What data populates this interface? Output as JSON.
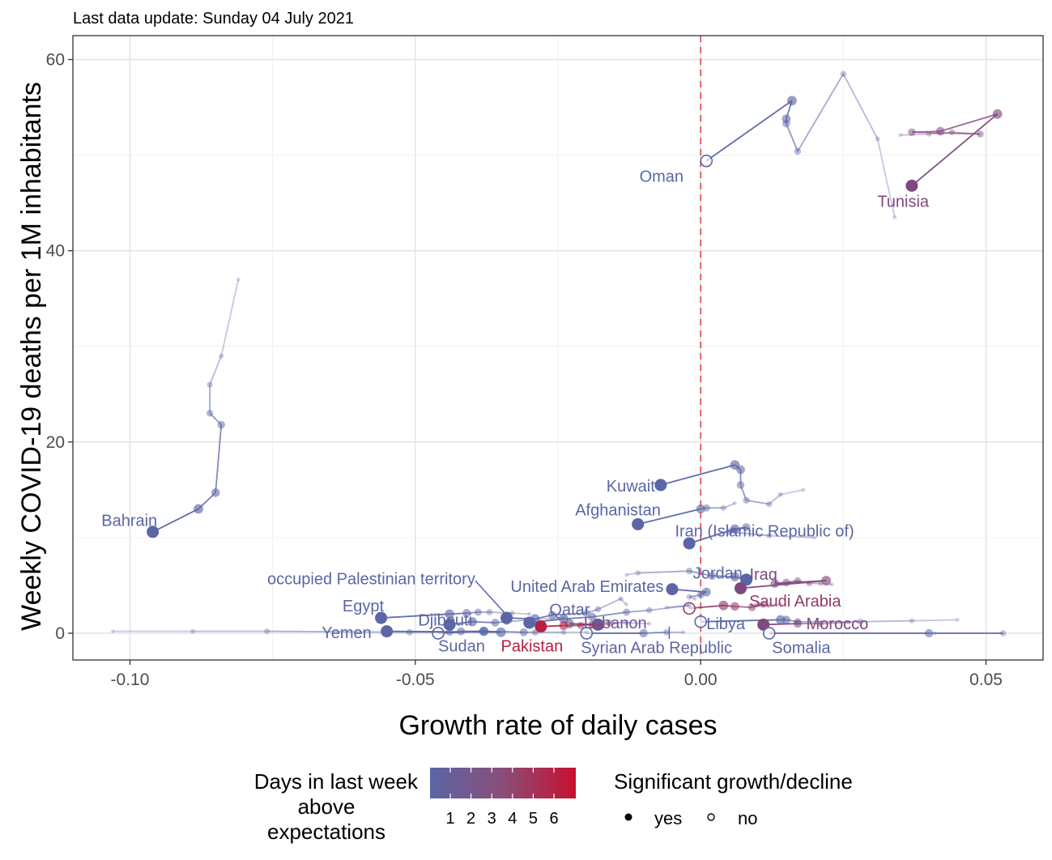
{
  "header": {
    "subtitle": "Last data update: Sunday 04 July 2021"
  },
  "chart_data": {
    "type": "scatter",
    "xlabel": "Growth rate of daily cases",
    "ylabel": "Weekly COVID-19 deaths per 1M inhabitants",
    "xlim": [
      -0.11,
      0.06
    ],
    "ylim": [
      -2.8,
      62.5
    ],
    "x_ticks": [
      -0.1,
      -0.05,
      0.0,
      0.05
    ],
    "x_tick_labels": [
      "-0.10",
      "-0.05",
      "0.00",
      "0.05"
    ],
    "y_ticks": [
      0,
      20,
      40,
      60
    ],
    "y_tick_labels": [
      "0",
      "20",
      "40",
      "60"
    ],
    "grid": true,
    "reference_line": {
      "x": 0,
      "color": "#e8646a",
      "style": "dashed"
    },
    "legend": {
      "position": "bottom",
      "color_title": "Days in last week above expectations",
      "color_title_lines": [
        "Days in last week",
        "above",
        "expectations"
      ],
      "color_ticks": [
        "1",
        "2",
        "3",
        "4",
        "5",
        "6"
      ],
      "color_low": "#5a66a6",
      "color_high": "#c8102e",
      "shape_title": "Significant growth/decline",
      "shape_labels": [
        "yes",
        "no"
      ]
    },
    "series": [
      {
        "name": "Bahrain",
        "days": 1,
        "trail": [
          [
            -0.081,
            37
          ],
          [
            -0.084,
            29
          ],
          [
            -0.086,
            26
          ],
          [
            -0.086,
            23
          ],
          [
            -0.084,
            21.8
          ],
          [
            -0.085,
            14.7
          ],
          [
            -0.088,
            13
          ],
          [
            -0.096,
            10.6
          ]
        ],
        "final_sig": true
      },
      {
        "name": "Oman",
        "days": 1,
        "trail": [
          [
            0.034,
            43.5
          ],
          [
            0.031,
            51.7
          ],
          [
            0.025,
            58.5
          ],
          [
            0.017,
            50.4
          ],
          [
            0.015,
            53.3
          ],
          [
            0.015,
            53.8
          ],
          [
            0.016,
            55.7
          ],
          [
            0.001,
            49.4
          ]
        ],
        "final_sig": false
      },
      {
        "name": "Tunisia",
        "days": 3,
        "trail": [
          [
            0.035,
            52.1
          ],
          [
            0.04,
            52.2
          ],
          [
            0.044,
            52.4
          ],
          [
            0.049,
            52.2
          ],
          [
            0.037,
            52.4
          ],
          [
            0.042,
            52.5
          ],
          [
            0.052,
            54.3
          ],
          [
            0.037,
            46.8
          ]
        ],
        "final_sig": true
      },
      {
        "name": "Kuwait",
        "days": 1,
        "trail": [
          [
            0.018,
            15
          ],
          [
            0.014,
            14.5
          ],
          [
            0.012,
            13.5
          ],
          [
            0.008,
            13.9
          ],
          [
            0.007,
            15.5
          ],
          [
            0.007,
            17.1
          ],
          [
            0.006,
            17.6
          ],
          [
            -0.007,
            15.5
          ]
        ],
        "final_sig": true
      },
      {
        "name": "Afghanistan",
        "days": 1,
        "trail": [
          [
            0.006,
            13.6
          ],
          [
            0.004,
            13.1
          ],
          [
            0.001,
            13.1
          ],
          [
            0.0,
            13.0
          ],
          [
            -0.011,
            11.4
          ]
        ],
        "final_sig": true
      },
      {
        "name": "Iran (Islamic Republic of)",
        "days": 1,
        "trail": [
          [
            0.02,
            10.0
          ],
          [
            0.012,
            10.2
          ],
          [
            0.005,
            10.6
          ],
          [
            0.008,
            11.1
          ],
          [
            0.006,
            10.9
          ],
          [
            -0.002,
            9.4
          ]
        ],
        "final_sig": true
      },
      {
        "name": "Jordan",
        "days": 1,
        "trail": [
          [
            -0.013,
            6.1
          ],
          [
            -0.011,
            6.3
          ],
          [
            -0.002,
            6.5
          ],
          [
            0.002,
            6.0
          ],
          [
            0.006,
            5.9
          ],
          [
            0.008,
            5.6
          ]
        ],
        "final_sig": true
      },
      {
        "name": "Iraq",
        "days": 3,
        "trail": [
          [
            0.023,
            5.1
          ],
          [
            0.021,
            5.2
          ],
          [
            0.019,
            5.2
          ],
          [
            0.017,
            5.5
          ],
          [
            0.015,
            5.3
          ],
          [
            0.013,
            5.2
          ],
          [
            0.022,
            5.5
          ],
          [
            0.007,
            4.7
          ]
        ],
        "final_sig": true
      },
      {
        "name": "United Arab Emirates",
        "days": 1,
        "trail": [
          [
            -0.001,
            3.6
          ],
          [
            -0.002,
            3.8
          ],
          [
            0.0,
            4.0
          ],
          [
            0.001,
            4.3
          ],
          [
            -0.005,
            4.6
          ]
        ],
        "final_sig": true
      },
      {
        "name": "Saudi Arabia",
        "days": 4,
        "trail": [
          [
            0.014,
            3.0
          ],
          [
            0.012,
            2.9
          ],
          [
            0.01,
            3.0
          ],
          [
            0.011,
            3.0
          ],
          [
            0.009,
            2.7
          ],
          [
            0.006,
            2.8
          ],
          [
            0.004,
            2.9
          ],
          [
            -0.002,
            2.6
          ]
        ],
        "final_sig": false
      },
      {
        "name": "occupied Palestinian territory",
        "days": 1,
        "trail": [
          [
            -0.013,
            3.0
          ],
          [
            -0.014,
            3.6
          ],
          [
            -0.018,
            2.5
          ],
          [
            -0.02,
            2.1
          ],
          [
            -0.026,
            1.9
          ],
          [
            -0.029,
            1.5
          ],
          [
            -0.034,
            1.6
          ]
        ],
        "final_sig": true
      },
      {
        "name": "Egypt",
        "days": 1,
        "trail": [
          [
            -0.03,
            2.0
          ],
          [
            -0.033,
            2.1
          ],
          [
            -0.037,
            2.2
          ],
          [
            -0.039,
            2.2
          ],
          [
            -0.041,
            2.1
          ],
          [
            -0.044,
            2.0
          ],
          [
            -0.056,
            1.6
          ]
        ],
        "final_sig": true
      },
      {
        "name": "Qatar",
        "days": 1,
        "trail": [
          [
            -0.006,
            2.7
          ],
          [
            -0.002,
            2.9
          ],
          [
            -0.009,
            2.4
          ],
          [
            -0.013,
            2.2
          ],
          [
            -0.019,
            1.7
          ],
          [
            -0.024,
            1.5
          ],
          [
            -0.03,
            1.1
          ]
        ],
        "final_sig": true
      },
      {
        "name": "Djibouti",
        "days": 1,
        "trail": [
          [
            -0.024,
            1.6
          ],
          [
            -0.03,
            1.4
          ],
          [
            -0.034,
            1.2
          ],
          [
            -0.036,
            1.1
          ],
          [
            -0.04,
            1.2
          ],
          [
            -0.044,
            0.9
          ]
        ],
        "final_sig": true
      },
      {
        "name": "Lebanon",
        "days": 2,
        "trail": [
          [
            -0.009,
            1.0
          ],
          [
            -0.013,
            1.1
          ],
          [
            -0.016,
            1.1
          ],
          [
            -0.019,
            0.9
          ],
          [
            -0.023,
            1.0
          ],
          [
            -0.018,
            0.9
          ]
        ],
        "final_sig": true
      },
      {
        "name": "Pakistan",
        "days": 6,
        "trail": [
          [
            -0.016,
            0.9
          ],
          [
            -0.019,
            0.9
          ],
          [
            -0.021,
            0.8
          ],
          [
            -0.024,
            0.8
          ],
          [
            -0.028,
            0.7
          ]
        ],
        "final_sig": true
      },
      {
        "name": "Libya",
        "days": 1,
        "trail": [
          [
            0.045,
            1.4
          ],
          [
            0.037,
            1.3
          ],
          [
            0.028,
            1.2
          ],
          [
            0.017,
            1.2
          ],
          [
            0.015,
            1.4
          ],
          [
            0.014,
            1.4
          ],
          [
            0.0,
            1.2
          ]
        ],
        "final_sig": false
      },
      {
        "name": "Morocco",
        "days": 3,
        "trail": [
          [
            0.026,
            1.1
          ],
          [
            0.021,
            1.0
          ],
          [
            0.017,
            1.0
          ],
          [
            0.011,
            0.9
          ]
        ],
        "final_sig": true
      },
      {
        "name": "Syrian Arab Republic",
        "days": 1,
        "trail": [
          [
            -0.003,
            0.1
          ],
          [
            -0.006,
            0.1
          ],
          [
            -0.01,
            0.0
          ],
          [
            -0.02,
            0.0
          ]
        ],
        "final_sig": false
      },
      {
        "name": "Somalia",
        "days": 1,
        "trail": [
          [
            0.041,
            0.0
          ],
          [
            0.053,
            0.0
          ],
          [
            0.04,
            0.0
          ],
          [
            0.012,
            0.0
          ]
        ],
        "final_sig": false
      },
      {
        "name": "Sudan",
        "days": 1,
        "trail": [
          [
            -0.02,
            0.1
          ],
          [
            -0.024,
            0.1
          ],
          [
            -0.029,
            0.1
          ],
          [
            -0.031,
            0.1
          ],
          [
            -0.038,
            0.2
          ],
          [
            -0.046,
            0.0
          ]
        ],
        "final_sig": false
      },
      {
        "name": "Yemen",
        "days": 1,
        "trail": [
          [
            -0.103,
            0.2
          ],
          [
            -0.089,
            0.2
          ],
          [
            -0.076,
            0.2
          ],
          [
            -0.051,
            0.1
          ],
          [
            -0.044,
            0.1
          ],
          [
            -0.042,
            0.2
          ],
          [
            -0.038,
            0.2
          ],
          [
            -0.035,
            0.1
          ],
          [
            -0.055,
            0.2
          ]
        ],
        "final_sig": true
      }
    ]
  }
}
